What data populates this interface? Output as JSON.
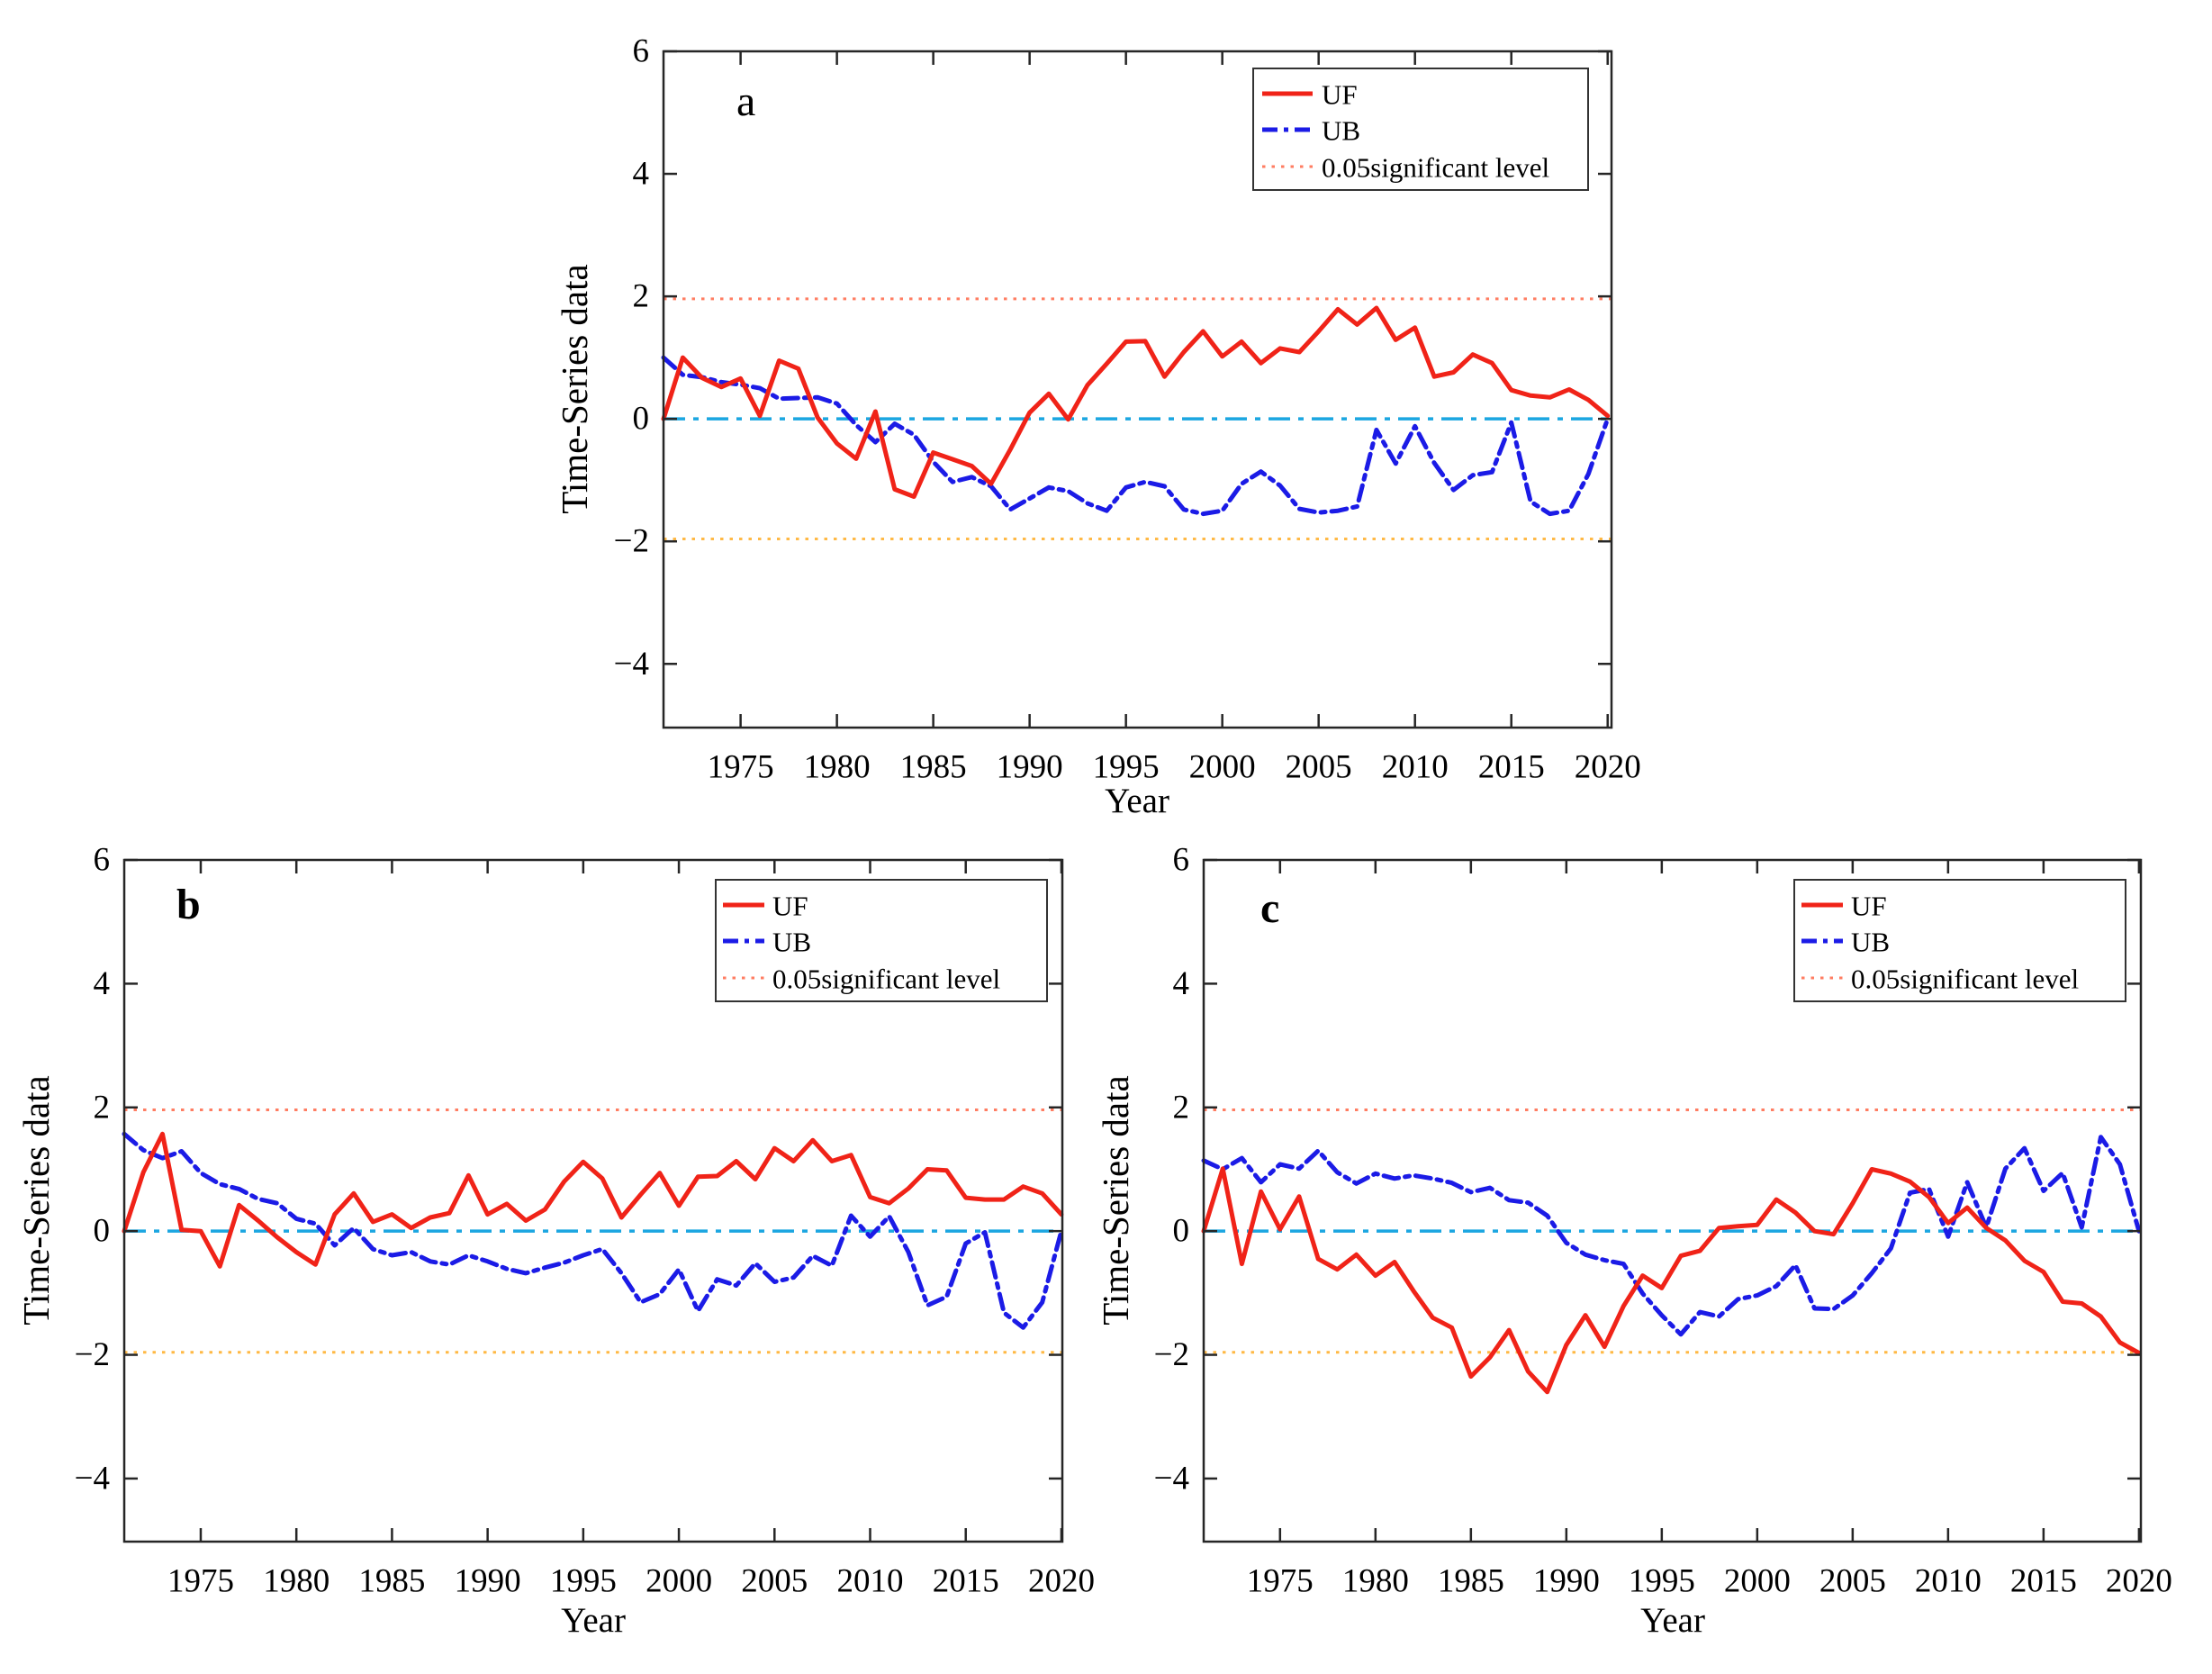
{
  "figure": {
    "background": "#ffffff"
  },
  "chart_data": [
    {
      "id": "a",
      "type": "line",
      "title": "a",
      "xlabel": "Year",
      "ylabel": "Time-Series data",
      "legend_position": "top-right",
      "grid": false,
      "xlim": [
        1971,
        2020.2
      ],
      "ylim": [
        -5.04,
        6
      ],
      "xticks": [
        1975,
        1980,
        1985,
        1990,
        1995,
        2000,
        2005,
        2010,
        2015,
        2020
      ],
      "yticks": [
        -4,
        -2,
        0,
        2,
        4,
        6
      ],
      "x": [
        1971,
        1972,
        1973,
        1974,
        1975,
        1976,
        1977,
        1978,
        1979,
        1980,
        1981,
        1982,
        1983,
        1984,
        1985,
        1986,
        1987,
        1988,
        1989,
        1990,
        1991,
        1992,
        1993,
        1994,
        1995,
        1996,
        1997,
        1998,
        1999,
        2000,
        2001,
        2002,
        2003,
        2004,
        2005,
        2006,
        2007,
        2008,
        2009,
        2010,
        2011,
        2012,
        2013,
        2014,
        2015,
        2016,
        2017,
        2018,
        2019,
        2020
      ],
      "series": [
        {
          "name": "UF",
          "color": "#f02318",
          "style": "solid",
          "values": [
            0.0,
            1.0,
            0.67,
            0.52,
            0.66,
            0.05,
            0.95,
            0.82,
            0.02,
            -0.4,
            -0.65,
            0.12,
            -1.15,
            -1.27,
            -0.55,
            -0.66,
            -0.77,
            -1.06,
            -0.5,
            0.1,
            0.41,
            -0.01,
            0.55,
            0.9,
            1.26,
            1.27,
            0.69,
            1.09,
            1.43,
            1.02,
            1.26,
            0.91,
            1.15,
            1.09,
            1.43,
            1.79,
            1.54,
            1.81,
            1.29,
            1.49,
            0.69,
            0.76,
            1.05,
            0.91,
            0.47,
            0.38,
            0.35,
            0.48,
            0.31,
            0.05
          ]
        },
        {
          "name": "UB",
          "color": "#1b1be6",
          "style": "dashdot",
          "values": [
            1.0,
            0.72,
            0.68,
            0.6,
            0.56,
            0.5,
            0.33,
            0.34,
            0.35,
            0.25,
            -0.1,
            -0.38,
            -0.08,
            -0.26,
            -0.7,
            -1.03,
            -0.95,
            -1.1,
            -1.48,
            -1.3,
            -1.12,
            -1.18,
            -1.38,
            -1.5,
            -1.12,
            -1.03,
            -1.1,
            -1.48,
            -1.55,
            -1.5,
            -1.06,
            -0.86,
            -1.09,
            -1.47,
            -1.53,
            -1.5,
            -1.43,
            -0.18,
            -0.73,
            -0.12,
            -0.72,
            -1.16,
            -0.92,
            -0.87,
            -0.06,
            -1.35,
            -1.55,
            -1.5,
            -0.9,
            0.0
          ]
        }
      ],
      "ref_lines": [
        {
          "name": "significance-upper",
          "value": 1.96,
          "color": "#ff7d62",
          "style": "dotted"
        },
        {
          "name": "zero-line",
          "value": 0,
          "color": "#1ba6e1",
          "style": "dashdot"
        },
        {
          "name": "significance-lower",
          "value": -1.96,
          "color": "#ffb946",
          "style": "dotted"
        }
      ],
      "legend": [
        {
          "label": "UF",
          "color": "#f02318",
          "style": "solid"
        },
        {
          "label": "UB",
          "color": "#1b1be6",
          "style": "dashdot"
        },
        {
          "label": "0.05significant level",
          "color": "#ff7d62",
          "style": "dotted"
        }
      ]
    },
    {
      "id": "b",
      "type": "line",
      "title": "b",
      "xlabel": "Year",
      "ylabel": "Time-Series data",
      "legend_position": "top-right",
      "grid": false,
      "xlim": [
        1971,
        2020.05
      ],
      "ylim": [
        -5.02,
        6
      ],
      "xticks": [
        1975,
        1980,
        1985,
        1990,
        1995,
        2000,
        2005,
        2010,
        2015,
        2020
      ],
      "yticks": [
        -4,
        -2,
        0,
        2,
        4,
        6
      ],
      "x": [
        1971,
        1972,
        1973,
        1974,
        1975,
        1976,
        1977,
        1978,
        1979,
        1980,
        1981,
        1982,
        1983,
        1984,
        1985,
        1986,
        1987,
        1988,
        1989,
        1990,
        1991,
        1992,
        1993,
        1994,
        1995,
        1996,
        1997,
        1998,
        1999,
        2000,
        2001,
        2002,
        2003,
        2004,
        2005,
        2006,
        2007,
        2008,
        2009,
        2010,
        2011,
        2012,
        2013,
        2014,
        2015,
        2016,
        2017,
        2018,
        2019,
        2020
      ],
      "series": [
        {
          "name": "UF",
          "color": "#f02318",
          "style": "solid",
          "values": [
            0.0,
            0.95,
            1.57,
            0.02,
            0.0,
            -0.57,
            0.42,
            0.17,
            -0.1,
            -0.34,
            -0.54,
            0.27,
            0.61,
            0.15,
            0.27,
            0.05,
            0.22,
            0.29,
            0.9,
            0.27,
            0.44,
            0.17,
            0.35,
            0.8,
            1.12,
            0.85,
            0.22,
            0.59,
            0.94,
            0.41,
            0.88,
            0.89,
            1.13,
            0.84,
            1.34,
            1.13,
            1.47,
            1.13,
            1.23,
            0.55,
            0.45,
            0.69,
            1.0,
            0.98,
            0.54,
            0.51,
            0.51,
            0.72,
            0.61,
            0.27
          ]
        },
        {
          "name": "UB",
          "color": "#1b1be6",
          "style": "dashdot",
          "values": [
            1.57,
            1.31,
            1.18,
            1.29,
            0.94,
            0.76,
            0.68,
            0.52,
            0.45,
            0.2,
            0.12,
            -0.23,
            0.05,
            -0.29,
            -0.39,
            -0.34,
            -0.49,
            -0.54,
            -0.39,
            -0.49,
            -0.61,
            -0.68,
            -0.59,
            -0.51,
            -0.39,
            -0.29,
            -0.68,
            -1.15,
            -1.02,
            -0.62,
            -1.29,
            -0.78,
            -0.88,
            -0.52,
            -0.82,
            -0.75,
            -0.4,
            -0.56,
            0.25,
            -0.09,
            0.24,
            -0.34,
            -1.2,
            -1.06,
            -0.2,
            -0.02,
            -1.32,
            -1.56,
            -1.15,
            0.0
          ]
        }
      ],
      "ref_lines": [
        {
          "name": "significance-upper",
          "value": 1.96,
          "color": "#ff7d62",
          "style": "dotted"
        },
        {
          "name": "zero-line",
          "value": 0,
          "color": "#1ba6e1",
          "style": "dashdot"
        },
        {
          "name": "significance-lower",
          "value": -1.96,
          "color": "#ffb946",
          "style": "dotted"
        }
      ],
      "legend": [
        {
          "label": "UF",
          "color": "#f02318",
          "style": "solid"
        },
        {
          "label": "UB",
          "color": "#1b1be6",
          "style": "dashdot"
        },
        {
          "label": "0.05significant level",
          "color": "#ff7d62",
          "style": "dotted"
        }
      ]
    },
    {
      "id": "c",
      "type": "line",
      "title": "c",
      "xlabel": "Year",
      "ylabel": "Time-Series data",
      "legend_position": "top-right",
      "grid": false,
      "xlim": [
        1971,
        2020.1
      ],
      "ylim": [
        -5.02,
        6
      ],
      "xticks": [
        1975,
        1980,
        1985,
        1990,
        1995,
        2000,
        2005,
        2010,
        2015,
        2020
      ],
      "yticks": [
        -4,
        -2,
        0,
        2,
        4,
        6
      ],
      "x": [
        1971,
        1972,
        1973,
        1974,
        1975,
        1976,
        1977,
        1978,
        1979,
        1980,
        1981,
        1982,
        1983,
        1984,
        1985,
        1986,
        1987,
        1988,
        1989,
        1990,
        1991,
        1992,
        1993,
        1994,
        1995,
        1996,
        1997,
        1998,
        1999,
        2000,
        2001,
        2002,
        2003,
        2004,
        2005,
        2006,
        2007,
        2008,
        2009,
        2010,
        2011,
        2012,
        2013,
        2014,
        2015,
        2016,
        2017,
        2018,
        2019,
        2020
      ],
      "series": [
        {
          "name": "UF",
          "color": "#f02318",
          "style": "solid",
          "values": [
            0.0,
            1.01,
            -0.53,
            0.64,
            0.03,
            0.56,
            -0.45,
            -0.62,
            -0.38,
            -0.72,
            -0.5,
            -0.97,
            -1.4,
            -1.56,
            -2.35,
            -2.04,
            -1.6,
            -2.27,
            -2.6,
            -1.84,
            -1.36,
            -1.87,
            -1.21,
            -0.72,
            -0.92,
            -0.4,
            -0.32,
            0.05,
            0.08,
            0.1,
            0.51,
            0.3,
            0.0,
            -0.05,
            0.45,
            1.0,
            0.93,
            0.8,
            0.55,
            0.13,
            0.38,
            0.05,
            -0.15,
            -0.48,
            -0.66,
            -1.14,
            -1.17,
            -1.38,
            -1.8,
            -1.97
          ]
        },
        {
          "name": "UB",
          "color": "#1b1be6",
          "style": "dashdot",
          "values": [
            1.14,
            1.0,
            1.18,
            0.79,
            1.08,
            1.01,
            1.3,
            0.95,
            0.77,
            0.93,
            0.85,
            0.9,
            0.85,
            0.78,
            0.63,
            0.7,
            0.5,
            0.46,
            0.25,
            -0.19,
            -0.38,
            -0.47,
            -0.53,
            -1.01,
            -1.36,
            -1.67,
            -1.31,
            -1.38,
            -1.1,
            -1.04,
            -0.89,
            -0.55,
            -1.25,
            -1.26,
            -1.04,
            -0.68,
            -0.28,
            0.62,
            0.68,
            -0.09,
            0.79,
            0.06,
            1.01,
            1.34,
            0.65,
            0.94,
            0.06,
            1.52,
            1.08,
            0.0
          ]
        }
      ],
      "ref_lines": [
        {
          "name": "significance-upper",
          "value": 1.96,
          "color": "#ff7d62",
          "style": "dotted"
        },
        {
          "name": "zero-line",
          "value": 0,
          "color": "#1ba6e1",
          "style": "dashdot"
        },
        {
          "name": "significance-lower",
          "value": -1.96,
          "color": "#ffb946",
          "style": "dotted"
        }
      ],
      "legend": [
        {
          "label": "UF",
          "color": "#f02318",
          "style": "solid"
        },
        {
          "label": "UB",
          "color": "#1b1be6",
          "style": "dashdot"
        },
        {
          "label": "0.05significant level",
          "color": "#ff7d62",
          "style": "dotted"
        }
      ]
    }
  ]
}
